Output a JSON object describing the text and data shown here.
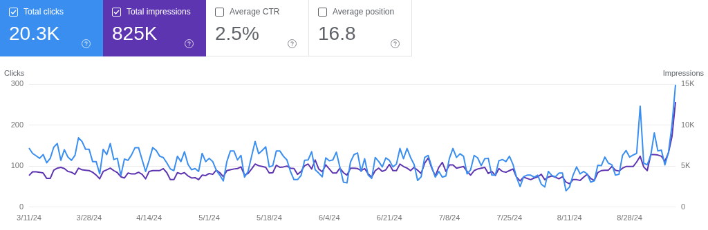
{
  "chart_data": [
    {
      "type": "other",
      "annotations": [
        "Total clicks",
        "20.3K",
        "Total impressions",
        "825K",
        "Average CTR",
        "2.5%",
        "Average position",
        "16.8"
      ]
    },
    {
      "type": "line",
      "ylabel": "Clicks",
      "y2label": "Impressions",
      "grid": "y",
      "legend": false,
      "marker": "none",
      "categories": [
        "3/11/24",
        null,
        null,
        null,
        null,
        null,
        null,
        null,
        null,
        null,
        null,
        null,
        null,
        null,
        null,
        null,
        null,
        "3/28/24",
        null,
        null,
        null,
        null,
        null,
        null,
        null,
        null,
        null,
        null,
        null,
        null,
        null,
        null,
        null,
        null,
        "4/14/24",
        null,
        null,
        null,
        null,
        null,
        null,
        null,
        null,
        null,
        null,
        null,
        null,
        null,
        null,
        null,
        null,
        "5/1/24",
        null,
        null,
        null,
        null,
        null,
        null,
        null,
        null,
        null,
        null,
        null,
        null,
        null,
        null,
        null,
        null,
        "5/18/24",
        null,
        null,
        null,
        null,
        null,
        null,
        null,
        null,
        null,
        null,
        null,
        null,
        null,
        null,
        null,
        null,
        "6/4/24",
        null,
        null,
        null,
        null,
        null,
        null,
        null,
        null,
        null,
        null,
        null,
        null,
        null,
        null,
        null,
        null,
        "6/21/24",
        null,
        null,
        null,
        null,
        null,
        null,
        null,
        null,
        null,
        null,
        null,
        null,
        null,
        null,
        null,
        null,
        "7/8/24",
        null,
        null,
        null,
        null,
        null,
        null,
        null,
        null,
        null,
        null,
        null,
        null,
        null,
        null,
        null,
        null,
        "7/25/24",
        null,
        null,
        null,
        null,
        null,
        null,
        null,
        null,
        null,
        null,
        null,
        null,
        null,
        null,
        null,
        null,
        "8/11/24",
        null,
        null,
        null,
        null,
        null,
        null,
        null,
        null,
        null,
        null,
        null,
        null,
        null,
        null,
        null,
        null,
        "8/28/24",
        null,
        null,
        null,
        null,
        null,
        null,
        null,
        null,
        null,
        null,
        null,
        null,
        null
      ],
      "ylim": [
        0,
        300
      ],
      "yticks": [
        0,
        100,
        200,
        300
      ],
      "y2lim": [
        0,
        15000
      ],
      "y2ticks": [
        0,
        {
          "value": 5000,
          "label": "5K"
        },
        {
          "value": 10000,
          "label": "10K"
        },
        {
          "value": 15000,
          "label": "15K"
        }
      ],
      "series": [
        {
          "color": "#3a8ef0",
          "values": [
            144,
            131,
            125,
            119,
            128,
            108,
            119,
            146,
            155,
            114,
            140,
            122,
            114,
            126,
            169,
            160,
            141,
            141,
            111,
            111,
            81,
            141,
            128,
            155,
            116,
            119,
            77,
            117,
            114,
            127,
            145,
            145,
            116,
            87,
            114,
            145,
            138,
            124,
            121,
            108,
            93,
            89,
            124,
            111,
            135,
            104,
            91,
            94,
            87,
            131,
            111,
            119,
            111,
            90,
            78,
            64,
            111,
            137,
            137,
            115,
            126,
            73,
            87,
            124,
            160,
            130,
            138,
            147,
            98,
            101,
            137,
            137,
            124,
            115,
            87,
            67,
            67,
            77,
            114,
            115,
            135,
            91,
            83,
            74,
            120,
            113,
            115,
            134,
            97,
            61,
            59,
            110,
            128,
            132,
            87,
            118,
            78,
            70,
            121,
            111,
            98,
            120,
            114,
            98,
            105,
            143,
            118,
            143,
            121,
            104,
            65,
            74,
            121,
            126,
            98,
            73,
            87,
            73,
            76,
            119,
            143,
            121,
            130,
            124,
            81,
            91,
            126,
            120,
            101,
            118,
            119,
            78,
            78,
            113,
            116,
            111,
            124,
            104,
            73,
            50,
            74,
            78,
            78,
            73,
            78,
            56,
            49,
            87,
            77,
            74,
            83,
            83,
            40,
            49,
            78,
            98,
            81,
            87,
            81,
            61,
            64,
            102,
            101,
            122,
            107,
            103,
            78,
            80,
            126,
            138,
            122,
            127,
            131,
            246,
            107,
            103,
            126,
            181,
            137,
            139,
            103,
            133,
            200,
            298
          ]
        },
        {
          "color": "#5e35b1",
          "axis": "y2",
          "values": [
            3850,
            4300,
            4300,
            4250,
            4150,
            3500,
            3500,
            4500,
            4750,
            4850,
            4700,
            4350,
            4250,
            4000,
            4750,
            4550,
            4500,
            4450,
            4250,
            3900,
            3450,
            4350,
            4550,
            4750,
            4450,
            4200,
            3700,
            3550,
            4150,
            4050,
            4050,
            4250,
            4000,
            3450,
            4350,
            4450,
            4450,
            4450,
            4700,
            4200,
            3350,
            3350,
            4200,
            4050,
            4200,
            3800,
            3550,
            3600,
            3350,
            3900,
            3850,
            4100,
            4000,
            4500,
            4200,
            3700,
            4450,
            4550,
            4650,
            4700,
            4900,
            3900,
            4100,
            4650,
            5250,
            5050,
            4950,
            4850,
            4150,
            4200,
            5100,
            4850,
            4900,
            5000,
            4750,
            4700,
            4000,
            4350,
            5050,
            5250,
            4650,
            5750,
            4650,
            4300,
            5150,
            4650,
            4150,
            4150,
            4750,
            4200,
            3900,
            4750,
            4750,
            4700,
            4450,
            4700,
            4050,
            3650,
            4450,
            4750,
            4350,
            4550,
            5200,
            4450,
            4450,
            5250,
            4950,
            4750,
            4450,
            4850,
            4500,
            4100,
            5350,
            6000,
            4750,
            3800,
            4850,
            5450,
            4350,
            5150,
            5150,
            4750,
            4850,
            4950,
            4350,
            3900,
            4450,
            4650,
            4750,
            4850,
            4100,
            4350,
            3850,
            4700,
            4350,
            4250,
            4450,
            4650,
            3650,
            3200,
            3650,
            3500,
            3350,
            3550,
            3700,
            4000,
            3350,
            3650,
            3800,
            3650,
            3450,
            3700,
            3050,
            2850,
            3350,
            3350,
            3250,
            3650,
            4000,
            3500,
            3250,
            4200,
            4450,
            4500,
            4500,
            4950,
            4500,
            4400,
            4750,
            4950,
            4950,
            4950,
            5500,
            6200,
            4900,
            4450,
            6400,
            6400,
            6350,
            6200,
            5600,
            6600,
            8600,
            12800
          ]
        }
      ]
    }
  ]
}
